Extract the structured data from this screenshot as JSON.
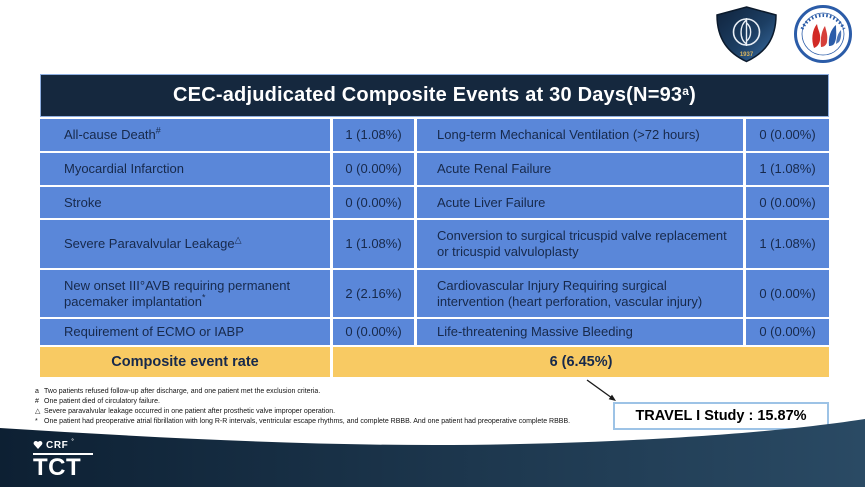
{
  "title": {
    "main": "CEC-adjudicated Composite Events at 30 Days(N=93",
    "sup": "a",
    "end": ")"
  },
  "table": {
    "rows": [
      {
        "label1": "All-cause Death",
        "sup1": "#",
        "value1": "1 (1.08%)",
        "label2": "Long-term Mechanical Ventilation (>72 hours)",
        "sup2": "",
        "value2": "0 (0.00%)"
      },
      {
        "label1": "Myocardial Infarction",
        "sup1": "",
        "value1": "0 (0.00%)",
        "label2": "Acute Renal Failure",
        "sup2": "",
        "value2": "1 (1.08%)"
      },
      {
        "label1": "Stroke",
        "sup1": "",
        "value1": "0 (0.00%)",
        "label2": "Acute Liver Failure",
        "sup2": "",
        "value2": "0 (0.00%)"
      },
      {
        "label1": "Severe Paravalvular Leakage",
        "sup1": "△",
        "value1": "1 (1.08%)",
        "label2": "Conversion to surgical tricuspid valve replacement or tricuspid valvuloplasty",
        "sup2": "",
        "value2": "1 (1.08%)"
      },
      {
        "label1": "New onset III°AVB requiring permanent pacemaker implantation",
        "sup1": "*",
        "value1": "2 (2.16%)",
        "label2": "Cardiovascular Injury Requiring surgical intervention (heart perforation, vascular injury)",
        "sup2": "",
        "value2": "0 (0.00%)"
      },
      {
        "label1": "Requirement of ECMO or IABP",
        "sup1": "",
        "value1": "0 (0.00%)",
        "label2": "Life-threatening Massive Bleeding",
        "sup2": "",
        "value2": "0 (0.00%)"
      }
    ],
    "composite": {
      "label": "Composite event rate",
      "value": "6 (6.45%)"
    }
  },
  "footnotes": [
    {
      "marker": "a",
      "text": "Two patients refused follow-up after discharge, and one patient met the exclusion criteria."
    },
    {
      "marker": "#",
      "text": "One patient died of circulatory failure."
    },
    {
      "marker": "△",
      "text": "Severe paravalvular leakage occurred in one patient after prosthetic valve improper operation."
    },
    {
      "marker": "*",
      "text": "One patient had preoperative atrial fibrillation with long R-R intervals, ventricular escape rhythms, and complete RBBB. And one patient had preoperative complete RBBB."
    }
  ],
  "callout": {
    "label": "TRAVEL I Study : 15.87%"
  },
  "branding": {
    "crf": "CRF",
    "crf_mark": "°",
    "tct": "TCT",
    "shield_year": "1937"
  },
  "colors": {
    "header_navy": "#15283E",
    "row_blue": "#5A87D9",
    "row_text": "#17294B",
    "composite_yellow": "#F8CA63",
    "footer_navy_left": "#0D2033",
    "footer_navy_right": "#2A4A64",
    "callout_border": "#9DC3E6"
  }
}
